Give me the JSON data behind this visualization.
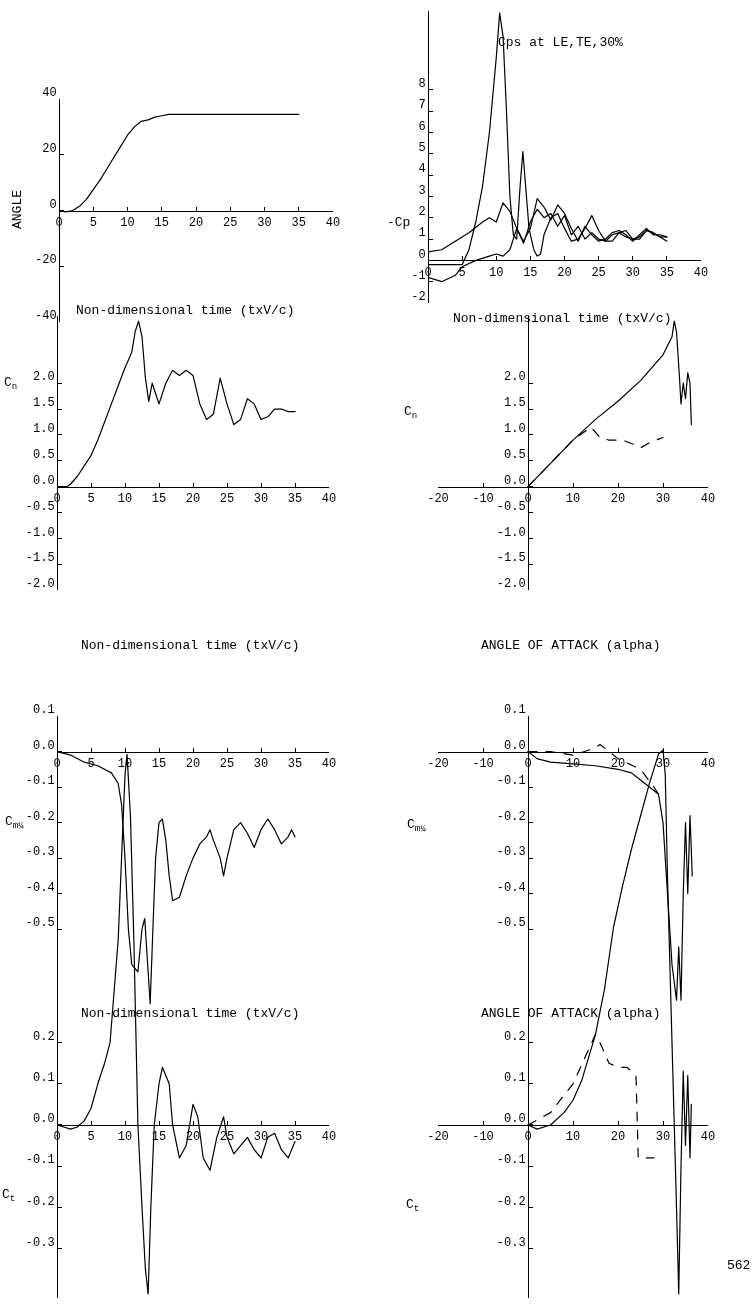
{
  "chart_data": [
    {
      "type": "line",
      "ylabel": "ANGLE",
      "xlabel": "Non-dimensional time (txV/c)",
      "xlim": [
        0,
        40
      ],
      "xticks": [
        0,
        5,
        10,
        15,
        20,
        25,
        30,
        35,
        40
      ],
      "ylim": [
        -40,
        40
      ],
      "yticks": [
        -40,
        -20,
        0,
        20,
        40
      ],
      "series": [
        {
          "color": "#000000",
          "x": [
            0,
            1,
            2,
            3,
            4,
            5,
            6,
            7,
            8,
            9,
            10,
            11,
            12,
            13,
            14,
            15,
            16,
            18,
            20,
            25,
            30,
            35
          ],
          "values": [
            0,
            -0.5,
            0,
            1.5,
            4,
            7.5,
            11,
            15,
            19,
            23,
            27,
            30,
            32,
            32.5,
            33.5,
            34,
            34.5,
            34.5,
            34.5,
            34.5,
            34.5,
            34.5
          ]
        }
      ]
    },
    {
      "type": "line",
      "title": "Cps at LE,TE,30%",
      "ylabel": "-Cp",
      "xlabel": "Non-dimensional time (txV/c)",
      "xlim": [
        0,
        40
      ],
      "xticks": [
        0,
        5,
        10,
        15,
        20,
        25,
        30,
        35,
        40
      ],
      "ylim": [
        -2,
        11.7
      ],
      "yticks": [
        -2,
        -1,
        0,
        1,
        2,
        3,
        4,
        5,
        6,
        7,
        8
      ],
      "series": [
        {
          "color": "#000000",
          "x": [
            0,
            5,
            6,
            7,
            8,
            9,
            10,
            10.5,
            11,
            11.5,
            12,
            12.5,
            13,
            13.5,
            13.9,
            14.3,
            14.8,
            15.5,
            16,
            16.5,
            17,
            18,
            19,
            20,
            21,
            22,
            23,
            24,
            25,
            26,
            27,
            28,
            29,
            30,
            31,
            32,
            33,
            34,
            35
          ],
          "values": [
            -0.2,
            -0.2,
            0.5,
            1.8,
            3.5,
            6,
            9.5,
            11.6,
            10.5,
            7,
            3,
            1.2,
            1,
            3.5,
            5.1,
            3.5,
            1.5,
            0.5,
            0.2,
            0.3,
            1.2,
            2,
            2.2,
            1.5,
            0.9,
            1,
            1.5,
            2.1,
            1.4,
            0.9,
            0.9,
            1.3,
            1.4,
            1,
            1,
            1.4,
            1.3,
            1.1,
            1.1
          ]
        },
        {
          "color": "#000000",
          "x": [
            0,
            2,
            4,
            6,
            8,
            9,
            10,
            11,
            12,
            13,
            14,
            15,
            16,
            17,
            18,
            19,
            20,
            21,
            22,
            23,
            24,
            25,
            26,
            27,
            28,
            29,
            30,
            31,
            32,
            33,
            34,
            35
          ],
          "values": [
            0.4,
            0.5,
            0.9,
            1.3,
            1.8,
            2,
            1.8,
            2.7,
            2.3,
            1.5,
            0.9,
            1.5,
            2.9,
            2.5,
            1.9,
            2.6,
            2.2,
            1.5,
            0.9,
            1.6,
            1.2,
            0.9,
            1,
            1.3,
            1.4,
            1.2,
            0.9,
            1.2,
            1.5,
            1.2,
            1.2,
            1.1
          ]
        },
        {
          "color": "#000000",
          "x": [
            0,
            2,
            4,
            5,
            7,
            9,
            10,
            11,
            12,
            13,
            14,
            15,
            16,
            17,
            18,
            19,
            20,
            21,
            22,
            23,
            24,
            25,
            26,
            27,
            28,
            29,
            30,
            31,
            32,
            33,
            34,
            35
          ],
          "values": [
            -0.8,
            -1,
            -0.7,
            -0.3,
            0,
            0.2,
            0.3,
            0.2,
            0.5,
            1.5,
            0.8,
            1.8,
            2.4,
            2,
            2.2,
            1.6,
            2.1,
            1.2,
            1.6,
            1,
            1.3,
            1,
            0.9,
            1.2,
            1.3,
            1.1,
            1,
            1.1,
            1.4,
            1.3,
            1.1,
            0.9
          ]
        }
      ]
    },
    {
      "type": "line",
      "ylabel": "C$_{n}$",
      "xlabel": "Non-dimensional time (txV/c)",
      "xlim": [
        0,
        40
      ],
      "xticks": [
        0,
        5,
        10,
        15,
        20,
        25,
        30,
        35,
        40
      ],
      "ylim": [
        -2,
        3.3
      ],
      "yticks": [
        {
          "value": -2,
          "label": "-2.0"
        },
        {
          "value": -1.5,
          "label": "-1.5"
        },
        {
          "value": -1,
          "label": "-1.0"
        },
        {
          "value": -0.5,
          "label": "-0.5"
        },
        {
          "value": 0,
          "label": "0.0"
        },
        {
          "value": 0.5,
          "label": "0.5"
        },
        {
          "value": 1,
          "label": "1.0"
        },
        {
          "value": 1.5,
          "label": "1.5"
        },
        {
          "value": 2,
          "label": "2.0"
        }
      ],
      "series": [
        {
          "color": "#000000",
          "x": [
            0,
            1.5,
            2,
            3,
            4,
            5,
            6,
            7,
            8,
            9,
            10,
            11,
            11.5,
            12,
            12.5,
            13,
            13.5,
            14,
            14.5,
            15,
            16,
            17,
            18,
            19,
            20,
            21,
            22,
            23,
            24,
            25,
            26,
            27,
            28,
            29,
            30,
            31,
            32,
            33,
            34,
            35
          ],
          "values": [
            0,
            0,
            0.05,
            0.2,
            0.4,
            0.6,
            0.9,
            1.25,
            1.6,
            1.95,
            2.3,
            2.6,
            3,
            3.2,
            2.9,
            2.1,
            1.65,
            2,
            1.8,
            1.6,
            2,
            2.25,
            2.15,
            2.25,
            2.15,
            1.6,
            1.3,
            1.4,
            2.1,
            1.6,
            1.2,
            1.3,
            1.7,
            1.6,
            1.3,
            1.35,
            1.5,
            1.5,
            1.45,
            1.45
          ]
        }
      ]
    },
    {
      "type": "line",
      "ylabel": "C$_{n}$",
      "xlabel": "ANGLE OF ATTACK (alpha)",
      "xlim": [
        -20,
        40
      ],
      "xticks": [
        -20,
        -10,
        0,
        10,
        20,
        30,
        40
      ],
      "ylim": [
        -2,
        3.3
      ],
      "yticks": [
        {
          "value": -2,
          "label": "-2.0"
        },
        {
          "value": -1.5,
          "label": "-1.5"
        },
        {
          "value": -1,
          "label": "-1.0"
        },
        {
          "value": -0.5,
          "label": "-0.5"
        },
        {
          "value": 0,
          "label": "0.0"
        },
        {
          "value": 0.5,
          "label": "0.5"
        },
        {
          "value": 1,
          "label": "1.0"
        },
        {
          "value": 1.5,
          "label": "1.5"
        },
        {
          "value": 2,
          "label": "2.0"
        }
      ],
      "series": [
        {
          "color": "#000000",
          "x": [
            0,
            5,
            10,
            15,
            20,
            25,
            30,
            32,
            32.5,
            33,
            33.6,
            34,
            34.5,
            35,
            35.5,
            36,
            36.3
          ],
          "values": [
            0,
            0.45,
            0.9,
            1.3,
            1.65,
            2.05,
            2.55,
            2.9,
            3.2,
            3,
            2.2,
            1.6,
            2,
            1.7,
            2.2,
            2,
            1.2
          ]
        },
        {
          "color": "#000000",
          "line_style": "dashed",
          "x": [
            0,
            5,
            10,
            14,
            16,
            18,
            21,
            24,
            25,
            27,
            30
          ],
          "values": [
            0,
            0.45,
            0.9,
            1.15,
            0.95,
            0.9,
            0.9,
            0.8,
            0.75,
            0.85,
            0.95
          ]
        }
      ]
    },
    {
      "type": "line",
      "ylabel": "C$_{m¼}$",
      "xlabel": "Non-dimensional time (txV/c)",
      "xlim": [
        0,
        40
      ],
      "xticks": [
        0,
        5,
        10,
        15,
        20,
        25,
        30,
        35,
        40
      ],
      "ylim": [
        -0.75,
        0.1
      ],
      "yticks": [
        {
          "value": -0.5,
          "label": "-0.5"
        },
        {
          "value": -0.4,
          "label": "-0.4"
        },
        {
          "value": -0.3,
          "label": "-0.3"
        },
        {
          "value": -0.2,
          "label": "-0.2"
        },
        {
          "value": -0.1,
          "label": "-0.1"
        },
        {
          "value": 0,
          "label": "0.0"
        },
        {
          "value": 0.1,
          "label": "0.1"
        }
      ],
      "series": [
        {
          "color": "#000000",
          "x": [
            0,
            2,
            4,
            6,
            8,
            9,
            9.5,
            10,
            10.5,
            11,
            11.9,
            12.5,
            12.9,
            13.7,
            14.1,
            14.5,
            15,
            15.5,
            16,
            16.5,
            17,
            18,
            19,
            20,
            21,
            22,
            22.5,
            23,
            24,
            24.5,
            25,
            26,
            27,
            28,
            29,
            30,
            31,
            32,
            33,
            34,
            34.5,
            35
          ],
          "values": [
            0,
            -0.01,
            -0.03,
            -0.04,
            -0.06,
            -0.09,
            -0.15,
            -0.3,
            -0.5,
            -0.6,
            -0.62,
            -0.5,
            -0.47,
            -0.71,
            -0.5,
            -0.3,
            -0.2,
            -0.19,
            -0.25,
            -0.35,
            -0.42,
            -0.41,
            -0.35,
            -0.3,
            -0.26,
            -0.24,
            -0.22,
            -0.25,
            -0.3,
            -0.35,
            -0.3,
            -0.22,
            -0.2,
            -0.23,
            -0.27,
            -0.22,
            -0.19,
            -0.22,
            -0.26,
            -0.24,
            -0.22,
            -0.24
          ]
        }
      ]
    },
    {
      "type": "line",
      "ylabel": "C$_{m¼}$",
      "xlabel": "ANGLE OF ATTACK (alpha)",
      "xlim": [
        -20,
        40
      ],
      "xticks": [
        -20,
        -10,
        0,
        10,
        20,
        30,
        40
      ],
      "ylim": [
        -0.75,
        0.1
      ],
      "yticks": [
        {
          "value": -0.5,
          "label": "-0.5"
        },
        {
          "value": -0.4,
          "label": "-0.4"
        },
        {
          "value": -0.3,
          "label": "-0.3"
        },
        {
          "value": -0.2,
          "label": "-0.2"
        },
        {
          "value": -0.1,
          "label": "-0.1"
        },
        {
          "value": 0,
          "label": "0.0"
        },
        {
          "value": 0.1,
          "label": "0.1"
        }
      ],
      "series": [
        {
          "color": "#000000",
          "x": [
            0,
            2,
            5,
            10,
            15,
            20,
            23,
            25,
            27,
            29,
            30,
            31,
            32,
            33,
            33.5,
            34,
            34.5,
            35,
            35.5,
            36,
            36.5
          ],
          "values": [
            0,
            -0.02,
            -0.03,
            -0.035,
            -0.04,
            -0.05,
            -0.06,
            -0.08,
            -0.1,
            -0.12,
            -0.2,
            -0.4,
            -0.6,
            -0.7,
            -0.55,
            -0.7,
            -0.4,
            -0.2,
            -0.4,
            -0.18,
            -0.35
          ]
        },
        {
          "color": "#000000",
          "line_style": "dashed",
          "x": [
            0,
            5,
            10,
            15,
            16,
            20,
            25,
            28,
            29
          ],
          "values": [
            0,
            0,
            -0.01,
            0.01,
            0.02,
            -0.02,
            -0.05,
            -0.1,
            -0.12
          ]
        }
      ]
    },
    {
      "type": "line",
      "ylabel": "C$_{t}$",
      "xlim": [
        0,
        40
      ],
      "xticks": [
        0,
        5,
        10,
        15,
        20,
        25,
        30,
        35,
        40
      ],
      "ylim": [
        -0.42,
        0.92
      ],
      "yticks": [
        {
          "value": -0.3,
          "label": "-0.3"
        },
        {
          "value": -0.2,
          "label": "-0.2"
        },
        {
          "value": -0.1,
          "label": "-0.1"
        },
        {
          "value": 0,
          "label": "0.0"
        },
        {
          "value": 0.1,
          "label": "0.1"
        },
        {
          "value": 0.2,
          "label": "0.2"
        }
      ],
      "series": [
        {
          "color": "#000000",
          "x": [
            0,
            2,
            3,
            4,
            5,
            6,
            7,
            7.8,
            9,
            9.5,
            10,
            10.3,
            10.8,
            11.3,
            11.9,
            12.5,
            13,
            13.4,
            13.8,
            14.3,
            15,
            15.5,
            16.5,
            17,
            18,
            19,
            20,
            20.7,
            21.5,
            22.5,
            23.5,
            24.5,
            25,
            26,
            27,
            28,
            29,
            30,
            31,
            32,
            33,
            34,
            35
          ],
          "values": [
            0,
            -0.01,
            -0.005,
            0.01,
            0.04,
            0.1,
            0.15,
            0.2,
            0.45,
            0.65,
            0.85,
            0.9,
            0.75,
            0.45,
            0,
            -0.2,
            -0.35,
            -0.41,
            -0.2,
            0,
            0.1,
            0.14,
            0.1,
            0,
            -0.08,
            -0.05,
            0.05,
            0.02,
            -0.08,
            -0.11,
            -0.03,
            0.02,
            -0.03,
            -0.07,
            -0.05,
            -0.03,
            -0.06,
            -0.08,
            -0.03,
            -0.02,
            -0.06,
            -0.08,
            -0.04
          ]
        }
      ]
    },
    {
      "type": "line",
      "ylabel": "C$_{t}$",
      "annotations": [
        "562"
      ],
      "xlim": [
        -20,
        40
      ],
      "xticks": [
        -20,
        -10,
        0,
        10,
        20,
        30,
        40
      ],
      "ylim": [
        -0.42,
        0.92
      ],
      "yticks": [
        {
          "value": -0.3,
          "label": "-0.3"
        },
        {
          "value": -0.2,
          "label": "-0.2"
        },
        {
          "value": -0.1,
          "label": "-0.1"
        },
        {
          "value": 0,
          "label": "0.0"
        },
        {
          "value": 0.1,
          "label": "0.1"
        },
        {
          "value": 0.2,
          "label": "0.2"
        }
      ],
      "series": [
        {
          "color": "#000000",
          "x": [
            0,
            2,
            5,
            8,
            10,
            12,
            15,
            17,
            19,
            21,
            23,
            25,
            27,
            29,
            30,
            30.5,
            31,
            32,
            33,
            33.5,
            34,
            34.5,
            35,
            35.5,
            36,
            36.3
          ],
          "values": [
            0,
            -0.01,
            0,
            0.03,
            0.06,
            0.11,
            0.22,
            0.33,
            0.48,
            0.58,
            0.67,
            0.75,
            0.83,
            0.9,
            0.91,
            0.85,
            0.6,
            0.2,
            -0.2,
            -0.41,
            -0.1,
            0.13,
            -0.05,
            0.12,
            -0.08,
            0.05
          ]
        },
        {
          "color": "#000000",
          "line_style": "dashed",
          "x": [
            0,
            5,
            10,
            15,
            16,
            18,
            20,
            22,
            24,
            24.5,
            28
          ],
          "values": [
            0,
            0.03,
            0.1,
            0.22,
            0.2,
            0.15,
            0.14,
            0.14,
            0.12,
            -0.08,
            -0.08
          ]
        }
      ]
    }
  ]
}
